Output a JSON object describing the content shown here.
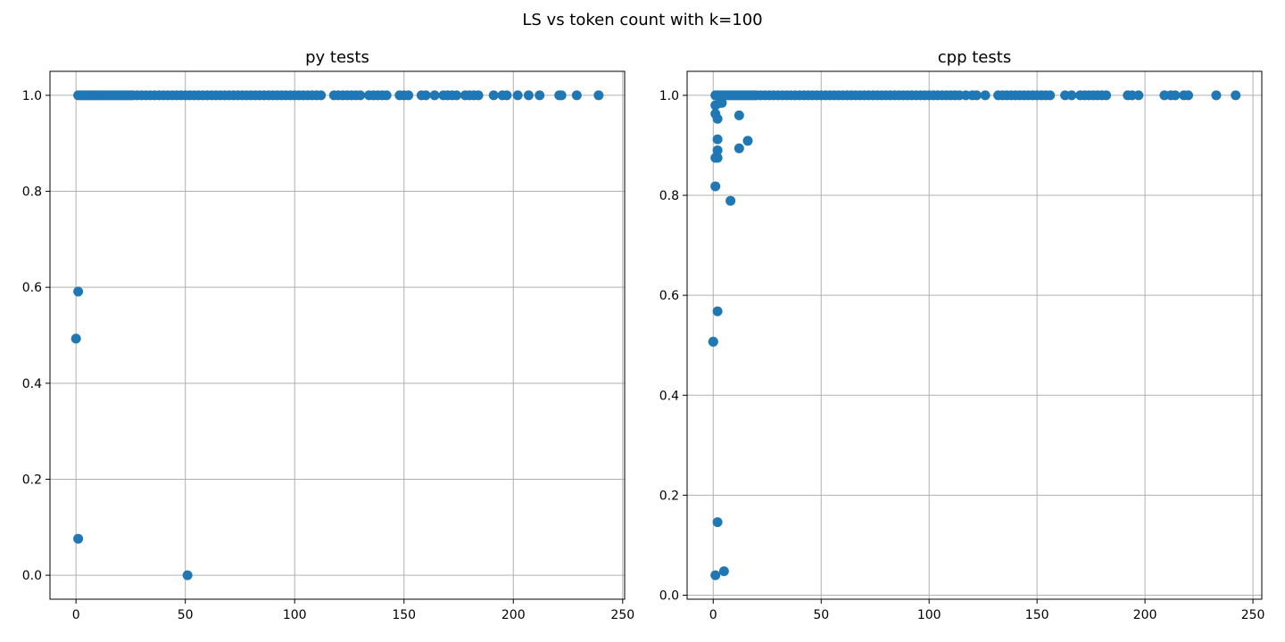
{
  "figure": {
    "suptitle": "LS vs token count with k=100"
  },
  "colors": {
    "marker": "#1f77b4",
    "grid": "#b0b0b0",
    "axes": "#000000",
    "background": "#ffffff"
  },
  "chart_data": [
    {
      "type": "scatter",
      "title": "py tests",
      "xlabel": "",
      "ylabel": "",
      "grid": true,
      "xlim": [
        -11.9,
        250.9
      ],
      "ylim": [
        -0.05,
        1.05
      ],
      "xticks": [
        0,
        50,
        100,
        150,
        200,
        250
      ],
      "yticks": [
        0.0,
        0.2,
        0.4,
        0.6,
        0.8,
        1.0
      ],
      "xtick_labels": [
        "0",
        "50",
        "100",
        "150",
        "200",
        "250"
      ],
      "ytick_labels": [
        "0.0",
        "0.2",
        "0.4",
        "0.6",
        "0.8",
        "1.0"
      ],
      "series": [
        {
          "x": [
            0,
            1,
            1,
            1,
            51,
            2,
            3,
            4,
            5,
            6,
            7,
            8,
            9,
            10,
            11,
            12,
            13,
            14,
            15,
            16,
            17,
            18,
            19,
            20,
            21,
            22,
            23,
            24,
            25,
            26,
            28,
            30,
            32,
            34,
            36,
            38,
            40,
            42,
            44,
            46,
            48,
            50,
            52,
            54,
            56,
            58,
            60,
            62,
            64,
            66,
            68,
            70,
            72,
            74,
            76,
            78,
            80,
            82,
            84,
            86,
            88,
            90,
            92,
            94,
            96,
            98,
            100,
            102,
            104,
            106,
            108,
            110,
            112,
            118,
            120,
            122,
            124,
            126,
            128,
            130,
            134,
            136,
            138,
            140,
            142,
            148,
            150,
            152,
            158,
            160,
            164,
            168,
            170,
            172,
            174,
            178,
            180,
            182,
            184,
            191,
            195,
            197,
            202,
            207,
            212,
            221,
            222,
            229,
            239
          ],
          "y": [
            0.493,
            0.591,
            0.076,
            1.0,
            0.0,
            1,
            1,
            1,
            1,
            1,
            1,
            1,
            1,
            1,
            1,
            1,
            1,
            1,
            1,
            1,
            1,
            1,
            1,
            1,
            1,
            1,
            1,
            1,
            1,
            1,
            1,
            1,
            1,
            1,
            1,
            1,
            1,
            1,
            1,
            1,
            1,
            1,
            1,
            1,
            1,
            1,
            1,
            1,
            1,
            1,
            1,
            1,
            1,
            1,
            1,
            1,
            1,
            1,
            1,
            1,
            1,
            1,
            1,
            1,
            1,
            1,
            1,
            1,
            1,
            1,
            1,
            1,
            1,
            1,
            1,
            1,
            1,
            1,
            1,
            1,
            1,
            1,
            1,
            1,
            1,
            1,
            1,
            1,
            1,
            1,
            1,
            1,
            1,
            1,
            1,
            1,
            1,
            1,
            1,
            1,
            1,
            1,
            1,
            1,
            1,
            1,
            1,
            1,
            1
          ]
        }
      ]
    },
    {
      "type": "scatter",
      "title": "cpp tests",
      "xlabel": "",
      "ylabel": "",
      "grid": true,
      "xlim": [
        -12.1,
        254.1
      ],
      "ylim": [
        -0.008,
        1.048
      ],
      "xticks": [
        0,
        50,
        100,
        150,
        200,
        250
      ],
      "yticks": [
        0.0,
        0.2,
        0.4,
        0.6,
        0.8,
        1.0
      ],
      "xtick_labels": [
        "0",
        "50",
        "100",
        "150",
        "200",
        "250"
      ],
      "ytick_labels": [
        "0.0",
        "0.2",
        "0.4",
        "0.6",
        "0.8",
        "1.0"
      ],
      "series": [
        {
          "x": [
            0,
            0,
            1,
            2,
            2,
            1,
            2,
            2,
            1,
            2,
            1,
            1,
            2,
            3,
            4,
            5,
            8,
            12,
            12,
            16,
            1,
            2,
            3,
            4,
            5,
            6,
            7,
            8,
            9,
            10,
            11,
            12,
            13,
            14,
            15,
            16,
            17,
            18,
            19,
            20,
            22,
            24,
            26,
            28,
            30,
            32,
            34,
            36,
            38,
            40,
            42,
            44,
            46,
            48,
            50,
            52,
            54,
            56,
            58,
            60,
            62,
            64,
            66,
            68,
            70,
            72,
            74,
            76,
            78,
            80,
            82,
            84,
            86,
            88,
            90,
            92,
            94,
            96,
            98,
            100,
            102,
            104,
            106,
            108,
            110,
            112,
            114,
            117,
            120,
            122,
            126,
            132,
            134,
            136,
            138,
            140,
            142,
            144,
            146,
            148,
            150,
            152,
            154,
            156,
            163,
            166,
            170,
            172,
            174,
            176,
            178,
            180,
            182,
            192,
            194,
            197,
            209,
            212,
            214,
            218,
            220,
            233,
            242
          ],
          "y": [
            0.507,
            0.507,
            0.04,
            0.146,
            0.568,
            0.818,
            0.89,
            0.875,
            0.875,
            0.912,
            0.963,
            0.98,
            0.953,
            0.985,
            0.985,
            0.048,
            0.789,
            0.96,
            0.894,
            0.909,
            1,
            1,
            1,
            1,
            1,
            1,
            1,
            1,
            1,
            1,
            1,
            1,
            1,
            1,
            1,
            1,
            1,
            1,
            1,
            1,
            1,
            1,
            1,
            1,
            1,
            1,
            1,
            1,
            1,
            1,
            1,
            1,
            1,
            1,
            1,
            1,
            1,
            1,
            1,
            1,
            1,
            1,
            1,
            1,
            1,
            1,
            1,
            1,
            1,
            1,
            1,
            1,
            1,
            1,
            1,
            1,
            1,
            1,
            1,
            1,
            1,
            1,
            1,
            1,
            1,
            1,
            1,
            1,
            1,
            1,
            1,
            1,
            1,
            1,
            1,
            1,
            1,
            1,
            1,
            1,
            1,
            1,
            1,
            1,
            1,
            1,
            1,
            1,
            1,
            1,
            1,
            1,
            1,
            1,
            1,
            1,
            1,
            1,
            1,
            1,
            1,
            1,
            1
          ]
        }
      ]
    }
  ]
}
